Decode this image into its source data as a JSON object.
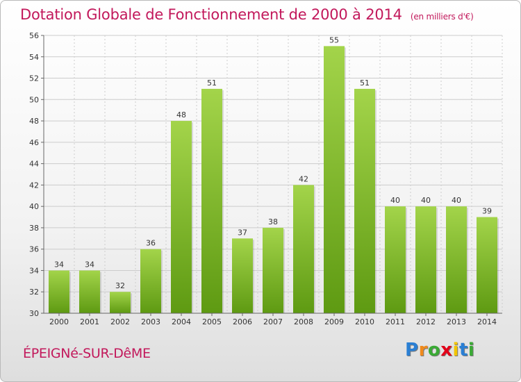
{
  "header": {
    "title": "Dotation Globale de Fonctionnement de 2000 à 2014",
    "unit": "(en milliers d'€)"
  },
  "footer": {
    "commune": "ÉPEIGNé-SUR-DêME",
    "logo_letters": [
      "P",
      "r",
      "o",
      "x",
      "i",
      "t",
      "i"
    ],
    "logo_colors": [
      "#2a7fd4",
      "#f08a1c",
      "#3aaa35",
      "#e2001a",
      "#f2c500",
      "#2a7fd4",
      "#3aaa35"
    ]
  },
  "colors": {
    "bar_light": "#a3d44a",
    "bar_dark": "#5e9a12",
    "grid": "#cccccc",
    "title": "#c2185b"
  },
  "chart_data": {
    "type": "bar",
    "title": "Dotation Globale de Fonctionnement de 2000 à 2014",
    "xlabel": "",
    "ylabel": "",
    "categories": [
      "2000",
      "2001",
      "2002",
      "2003",
      "2004",
      "2005",
      "2006",
      "2007",
      "2008",
      "2009",
      "2010",
      "2011",
      "2012",
      "2013",
      "2014"
    ],
    "values": [
      34,
      34,
      32,
      36,
      48,
      51,
      37,
      38,
      42,
      55,
      51,
      40,
      40,
      40,
      39
    ],
    "ylim": [
      30,
      56
    ],
    "yticks": [
      30,
      32,
      34,
      36,
      38,
      40,
      42,
      44,
      46,
      48,
      50,
      52,
      54,
      56
    ],
    "grid": true
  }
}
